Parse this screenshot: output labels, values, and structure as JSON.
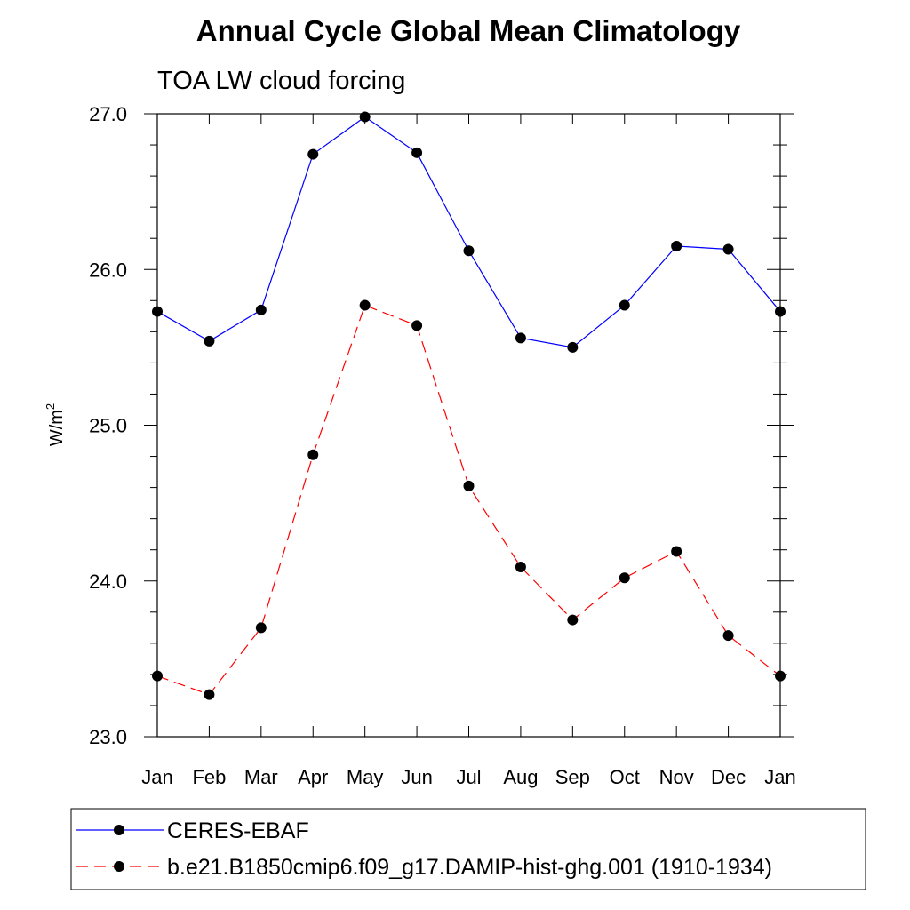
{
  "chart_data": {
    "type": "line",
    "title": "Annual Cycle Global Mean Climatology",
    "subtitle": "TOA LW cloud forcing",
    "xlabel": "",
    "ylabel": "W/m",
    "ylabel_superscript": "2",
    "categories": [
      "Jan",
      "Feb",
      "Mar",
      "Apr",
      "May",
      "Jun",
      "Jul",
      "Aug",
      "Sep",
      "Oct",
      "Nov",
      "Dec",
      "Jan"
    ],
    "ylim": [
      23.0,
      27.0
    ],
    "yticks": [
      23.0,
      24.0,
      25.0,
      26.0,
      27.0
    ],
    "ytick_labels": [
      "23.0",
      "24.0",
      "25.0",
      "26.0",
      "27.0"
    ],
    "y_minor_step": 0.2,
    "grid": false,
    "legend_position": "bottom",
    "series": [
      {
        "name": "CERES-EBAF",
        "color": "#0000ff",
        "line_style": "solid",
        "marker": "filled-circle",
        "values": [
          25.73,
          25.54,
          25.74,
          26.74,
          26.98,
          26.75,
          26.12,
          25.56,
          25.5,
          25.77,
          26.15,
          26.13,
          25.73
        ]
      },
      {
        "name": "b.e21.B1850cmip6.f09_g17.DAMIP-hist-ghg.001 (1910-1934)",
        "color": "#ff0000",
        "line_style": "dashed",
        "marker": "filled-circle",
        "values": [
          23.39,
          23.27,
          23.7,
          24.81,
          25.77,
          25.64,
          24.61,
          24.09,
          23.75,
          24.02,
          24.19,
          23.65,
          23.39
        ]
      }
    ]
  }
}
